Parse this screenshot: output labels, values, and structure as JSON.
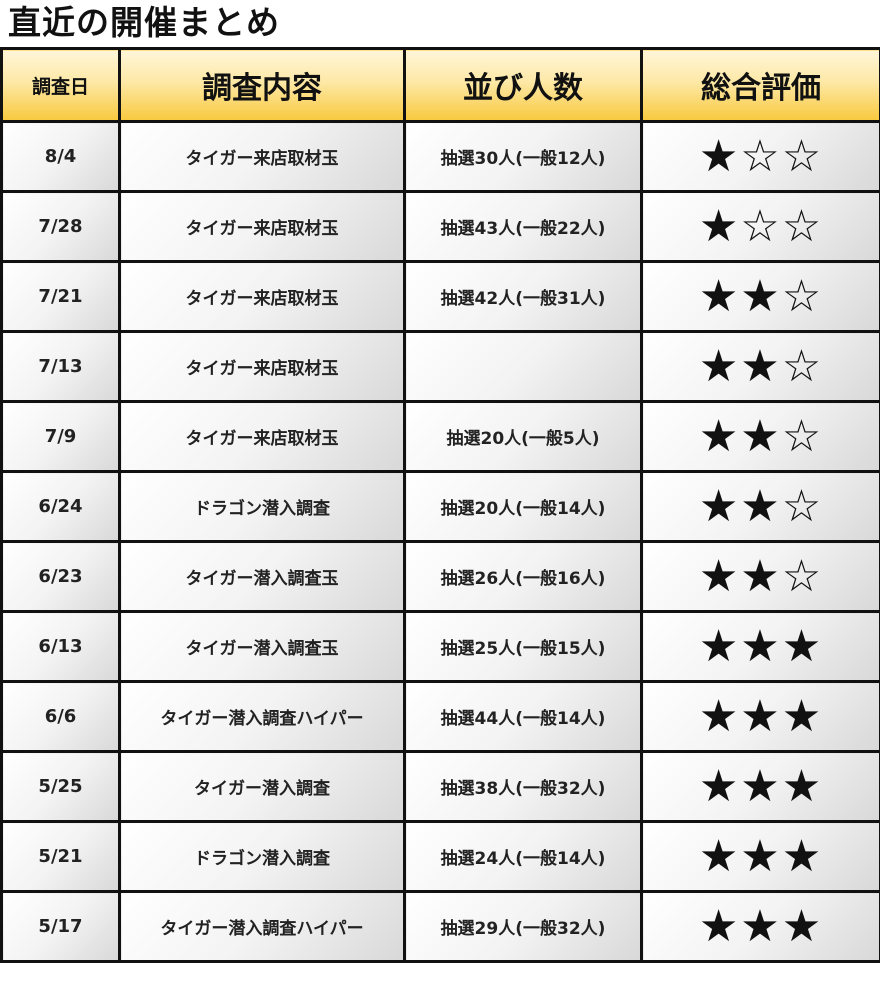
{
  "title": "直近の開催まとめ",
  "headers": {
    "date": "調査日",
    "content": "調査内容",
    "queue": "並び人数",
    "rating": "総合評価"
  },
  "rows": [
    {
      "date": "8/4",
      "content": "タイガー来店取材玉",
      "queue": "抽選30人(一般12人)",
      "rating": 1
    },
    {
      "date": "7/28",
      "content": "タイガー来店取材玉",
      "queue": "抽選43人(一般22人)",
      "rating": 1
    },
    {
      "date": "7/21",
      "content": "タイガー来店取材玉",
      "queue": "抽選42人(一般31人)",
      "rating": 2
    },
    {
      "date": "7/13",
      "content": "タイガー来店取材玉",
      "queue": "",
      "rating": 2
    },
    {
      "date": "7/9",
      "content": "タイガー来店取材玉",
      "queue": "抽選20人(一般5人)",
      "rating": 2
    },
    {
      "date": "6/24",
      "content": "ドラゴン潜入調査",
      "queue": "抽選20人(一般14人)",
      "rating": 2
    },
    {
      "date": "6/23",
      "content": "タイガー潜入調査玉",
      "queue": "抽選26人(一般16人)",
      "rating": 2
    },
    {
      "date": "6/13",
      "content": "タイガー潜入調査玉",
      "queue": "抽選25人(一般15人)",
      "rating": 3
    },
    {
      "date": "6/6",
      "content": "タイガー潜入調査ハイパー",
      "queue": "抽選44人(一般14人)",
      "rating": 3
    },
    {
      "date": "5/25",
      "content": "タイガー潜入調査",
      "queue": "抽選38人(一般32人)",
      "rating": 3
    },
    {
      "date": "5/21",
      "content": "ドラゴン潜入調査",
      "queue": "抽選24人(一般14人)",
      "rating": 3
    },
    {
      "date": "5/17",
      "content": "タイガー潜入調査ハイパー",
      "queue": "抽選29人(一般32人)",
      "rating": 3
    }
  ],
  "rating_max": 3
}
